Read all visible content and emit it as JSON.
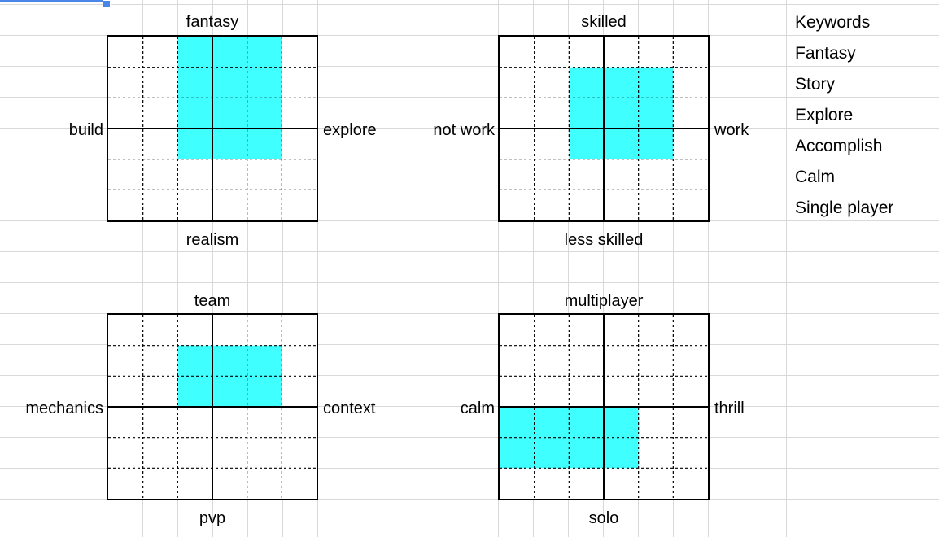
{
  "colors": {
    "fill": "#40ffff",
    "grid_line": "#d9d9d9",
    "selection": "#4a86e8"
  },
  "charts": [
    {
      "id": "fantasy-realism",
      "top": "fantasy",
      "bottom": "realism",
      "left": "build",
      "right": "explore",
      "grid_cols": 6,
      "grid_rows": 6,
      "highlight": {
        "col_start": 2,
        "col_end": 5,
        "row_start": 0,
        "row_end": 4
      }
    },
    {
      "id": "skilled-less",
      "top": "skilled",
      "bottom": "less skilled",
      "left": "not work",
      "right": "work",
      "grid_cols": 6,
      "grid_rows": 6,
      "highlight": {
        "col_start": 2,
        "col_end": 5,
        "row_start": 1,
        "row_end": 4
      }
    },
    {
      "id": "team-pvp",
      "top": "team",
      "bottom": "pvp",
      "left": "mechanics",
      "right": "context",
      "grid_cols": 6,
      "grid_rows": 6,
      "highlight": {
        "col_start": 2,
        "col_end": 5,
        "row_start": 1,
        "row_end": 3
      }
    },
    {
      "id": "multiplayer-solo",
      "top": "multiplayer",
      "bottom": "solo",
      "left": "calm",
      "right": "thrill",
      "grid_cols": 6,
      "grid_rows": 6,
      "highlight": {
        "col_start": 0,
        "col_end": 4,
        "row_start": 3,
        "row_end": 5
      }
    }
  ],
  "keywords": [
    "Keywords",
    "Fantasy",
    "Story",
    "Explore",
    "Accomplish",
    "Calm",
    "Single player"
  ]
}
